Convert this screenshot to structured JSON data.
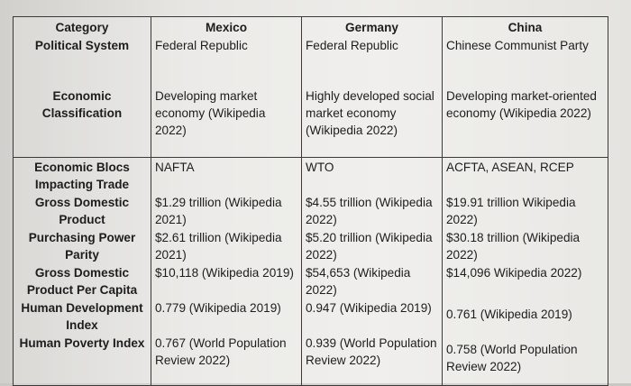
{
  "headers": {
    "category": "Category",
    "mexico": "Mexico",
    "germany": "Germany",
    "china": "China"
  },
  "rows": [
    {
      "label": "Political System",
      "mexico": "Federal Republic",
      "germany": "Federal Republic",
      "china": "Chinese Communist Party"
    },
    {
      "label": "Economic Classification",
      "mexico": "Developing market economy (Wikipedia 2022)",
      "germany": "Highly developed social market economy (Wikipedia 2022)",
      "china": "Developing market-oriented economy (Wikipedia 2022)"
    },
    {
      "label": "Economic Blocs Impacting Trade",
      "mexico": "NAFTA",
      "germany": "WTO",
      "china": "ACFTA, ASEAN, RCEP"
    },
    {
      "label": "Gross Domestic Product",
      "mexico": "$1.29 trillion (Wikipedia 2021)",
      "germany": "$4.55 trillion (Wikipedia 2022)",
      "china": "$19.91 trillion Wikipedia 2022)"
    },
    {
      "label": "Purchasing Power Parity",
      "mexico": "$2.61 trillion (Wikipedia 2021)",
      "germany": "$5.20 trillion (Wikipedia 2022)",
      "china": "$30.18 trillion (Wikipedia 2022)"
    },
    {
      "label": "Gross Domestic Product Per Capita",
      "mexico": "$10,118 (Wikipedia 2019)",
      "germany": "$54,653 (Wikipedia 2022)",
      "china": "$14,096 Wikipedia 2022)"
    },
    {
      "label": "Human Development Index",
      "mexico": "0.779 (Wikipedia 2019)",
      "germany": "0.947 (Wikipedia 2019)",
      "china": "0.761 (Wikipedia 2019)"
    },
    {
      "label": "Human Poverty Index",
      "mexico": "0.767 (World Population Review 2022)",
      "germany": "0.939 (World Population Review 2022)",
      "china": "0.758 (World Population Review 2022)"
    }
  ]
}
